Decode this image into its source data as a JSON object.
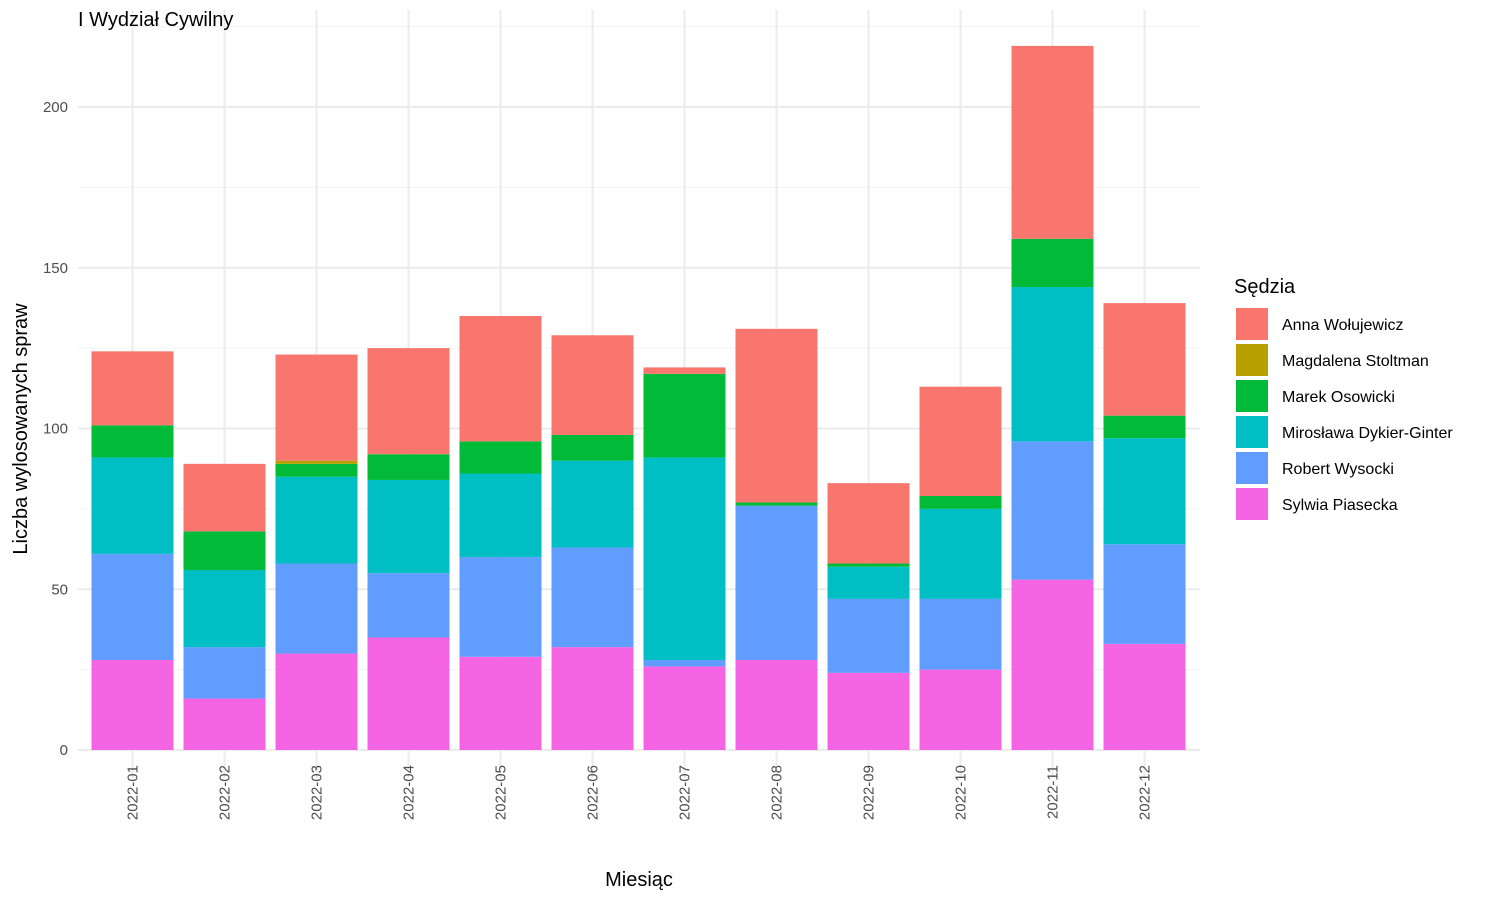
{
  "chart_data": {
    "type": "bar",
    "stacked": true,
    "title": "I Wydział Cywilny",
    "xlabel": "Miesiąc",
    "ylabel": "Liczba wylosowanych spraw",
    "ylim": [
      0,
      225
    ],
    "yticks": [
      0,
      50,
      100,
      150,
      200
    ],
    "grid": true,
    "legend_title": "Sędzia",
    "legend_position": "right",
    "categories": [
      "2022-01",
      "2022-02",
      "2022-03",
      "2022-04",
      "2022-05",
      "2022-06",
      "2022-07",
      "2022-08",
      "2022-09",
      "2022-10",
      "2022-11",
      "2022-12"
    ],
    "series": [
      {
        "name": "Anna Wołujewicz",
        "color": "#F8766D",
        "values": [
          23,
          21,
          33,
          33,
          39,
          31,
          2,
          54,
          25,
          34,
          60,
          35
        ]
      },
      {
        "name": "Magdalena Stoltman",
        "color": "#B79F00",
        "values": [
          0,
          0,
          1,
          0,
          0,
          0,
          0,
          0,
          0,
          0,
          0,
          0
        ]
      },
      {
        "name": "Marek Osowicki",
        "color": "#00BA38",
        "values": [
          10,
          12,
          4,
          8,
          10,
          8,
          26,
          1,
          1,
          4,
          15,
          7
        ]
      },
      {
        "name": "Mirosława Dykier-Ginter",
        "color": "#00BFC4",
        "values": [
          30,
          24,
          27,
          29,
          26,
          27,
          63,
          0,
          10,
          28,
          48,
          33
        ]
      },
      {
        "name": "Robert Wysocki",
        "color": "#619CFF",
        "values": [
          33,
          16,
          28,
          20,
          31,
          31,
          2,
          48,
          23,
          22,
          43,
          31
        ]
      },
      {
        "name": "Sylwia Piasecka",
        "color": "#F564E3",
        "values": [
          28,
          16,
          30,
          35,
          29,
          32,
          26,
          28,
          24,
          25,
          53,
          33
        ]
      }
    ]
  }
}
